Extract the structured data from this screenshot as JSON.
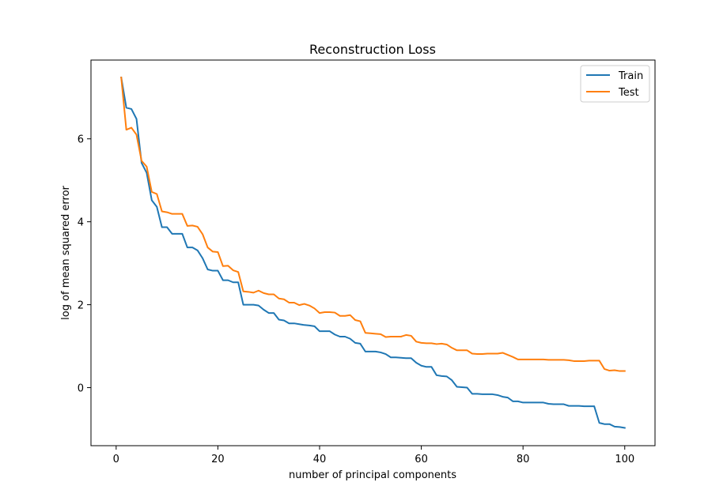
{
  "chart_data": {
    "type": "line",
    "title": "Reconstruction Loss",
    "xlabel": "number of principal components",
    "ylabel": "log of mean squared error",
    "xlim": [
      -4.95,
      105.95
    ],
    "ylim": [
      -1.4,
      7.9
    ],
    "xticks": [
      0,
      20,
      40,
      60,
      80,
      100
    ],
    "yticks": [
      0,
      2,
      4,
      6
    ],
    "legend_position": "top-right",
    "grid": false,
    "series": [
      {
        "name": "Train",
        "color": "#1f77b4",
        "x": [
          1,
          2,
          3,
          4,
          5,
          6,
          7,
          8,
          9,
          10,
          11,
          12,
          13,
          14,
          15,
          16,
          17,
          18,
          19,
          20,
          21,
          22,
          23,
          24,
          25,
          26,
          27,
          28,
          29,
          30,
          31,
          32,
          33,
          34,
          35,
          36,
          37,
          38,
          39,
          40,
          41,
          42,
          43,
          44,
          45,
          46,
          47,
          48,
          49,
          50,
          51,
          52,
          53,
          54,
          55,
          56,
          57,
          58,
          59,
          60,
          61,
          62,
          63,
          64,
          65,
          66,
          67,
          68,
          69,
          70,
          71,
          72,
          73,
          74,
          75,
          76,
          77,
          78,
          79,
          80,
          81,
          82,
          83,
          84,
          85,
          86,
          87,
          88,
          89,
          90,
          91,
          92,
          93,
          94,
          95,
          96,
          97,
          98,
          99,
          100
        ],
        "values": [
          7.48,
          6.75,
          6.72,
          6.48,
          5.42,
          5.18,
          4.52,
          4.36,
          3.87,
          3.87,
          3.71,
          3.71,
          3.71,
          3.38,
          3.38,
          3.31,
          3.12,
          2.85,
          2.82,
          2.82,
          2.59,
          2.59,
          2.54,
          2.54,
          2.0,
          2.0,
          2.0,
          1.98,
          1.88,
          1.8,
          1.8,
          1.64,
          1.62,
          1.55,
          1.55,
          1.53,
          1.51,
          1.5,
          1.48,
          1.36,
          1.36,
          1.36,
          1.28,
          1.23,
          1.23,
          1.18,
          1.08,
          1.06,
          0.87,
          0.87,
          0.87,
          0.85,
          0.81,
          0.73,
          0.73,
          0.72,
          0.71,
          0.71,
          0.6,
          0.53,
          0.5,
          0.5,
          0.3,
          0.28,
          0.27,
          0.18,
          0.02,
          0.01,
          0.0,
          -0.15,
          -0.15,
          -0.16,
          -0.16,
          -0.16,
          -0.18,
          -0.22,
          -0.24,
          -0.33,
          -0.33,
          -0.36,
          -0.36,
          -0.36,
          -0.36,
          -0.36,
          -0.39,
          -0.4,
          -0.4,
          -0.4,
          -0.44,
          -0.44,
          -0.44,
          -0.45,
          -0.45,
          -0.45,
          -0.85,
          -0.88,
          -0.88,
          -0.94,
          -0.95,
          -0.97
        ]
      },
      {
        "name": "Test",
        "color": "#ff7f0e",
        "x": [
          1,
          2,
          3,
          4,
          5,
          6,
          7,
          8,
          9,
          10,
          11,
          12,
          13,
          14,
          15,
          16,
          17,
          18,
          19,
          20,
          21,
          22,
          23,
          24,
          25,
          26,
          27,
          28,
          29,
          30,
          31,
          32,
          33,
          34,
          35,
          36,
          37,
          38,
          39,
          40,
          41,
          42,
          43,
          44,
          45,
          46,
          47,
          48,
          49,
          50,
          51,
          52,
          53,
          54,
          55,
          56,
          57,
          58,
          59,
          60,
          61,
          62,
          63,
          64,
          65,
          66,
          67,
          68,
          69,
          70,
          71,
          72,
          73,
          74,
          75,
          76,
          77,
          78,
          79,
          80,
          81,
          82,
          83,
          84,
          85,
          86,
          87,
          88,
          89,
          90,
          91,
          92,
          93,
          94,
          95,
          96,
          97,
          98,
          99,
          100
        ],
        "values": [
          7.48,
          6.22,
          6.27,
          6.1,
          5.47,
          5.33,
          4.72,
          4.67,
          4.25,
          4.23,
          4.19,
          4.19,
          4.19,
          3.9,
          3.91,
          3.88,
          3.7,
          3.38,
          3.28,
          3.27,
          2.93,
          2.94,
          2.83,
          2.79,
          2.32,
          2.31,
          2.29,
          2.34,
          2.28,
          2.25,
          2.25,
          2.15,
          2.13,
          2.05,
          2.05,
          1.99,
          2.02,
          1.98,
          1.91,
          1.8,
          1.82,
          1.82,
          1.81,
          1.73,
          1.73,
          1.75,
          1.63,
          1.6,
          1.32,
          1.31,
          1.3,
          1.29,
          1.22,
          1.23,
          1.23,
          1.23,
          1.27,
          1.25,
          1.11,
          1.08,
          1.07,
          1.07,
          1.05,
          1.06,
          1.04,
          0.96,
          0.9,
          0.9,
          0.9,
          0.82,
          0.81,
          0.81,
          0.82,
          0.82,
          0.82,
          0.84,
          0.79,
          0.74,
          0.68,
          0.68,
          0.68,
          0.68,
          0.68,
          0.68,
          0.67,
          0.67,
          0.67,
          0.67,
          0.66,
          0.64,
          0.64,
          0.64,
          0.65,
          0.65,
          0.65,
          0.45,
          0.41,
          0.42,
          0.4,
          0.4
        ]
      }
    ]
  }
}
